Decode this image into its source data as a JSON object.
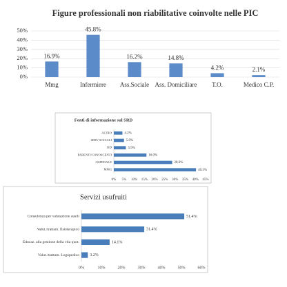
{
  "chart_data": [
    {
      "type": "bar",
      "orientation": "vertical",
      "title": "Figure professionali non riabilitative coinvolte nelle PIC",
      "categories": [
        "Mmg",
        "Infermiere",
        "Ass.Sociale",
        "Ass. Domiciliare",
        "T.O.",
        "Medico C.P."
      ],
      "values": [
        16.9,
        45.8,
        16.2,
        14.8,
        4.2,
        2.1
      ],
      "value_labels": [
        "16.9%",
        "45.8%",
        "16.2%",
        "14.8%",
        "4.2%",
        "2.1%"
      ],
      "color": "#5b8bc9",
      "ylim": [
        0,
        50
      ],
      "yticks": [
        {
          "value": 0,
          "label": "0%"
        },
        {
          "value": 10,
          "label": "10%"
        },
        {
          "value": 20,
          "label": "20%"
        },
        {
          "value": 30,
          "label": "30%"
        },
        {
          "value": 40,
          "label": "40%"
        },
        {
          "value": 50,
          "label": "50%"
        }
      ],
      "grid": true
    },
    {
      "type": "bar",
      "orientation": "horizontal",
      "title": "Fonti di informazione sul SRD",
      "categories": [
        "ALTRO",
        "SERV SOCIALI",
        "SID",
        "PARENTI/CONOSCENTI",
        "OSPEDALE",
        "MMG"
      ],
      "values": [
        4.2,
        5.0,
        5.9,
        16.0,
        28.6,
        40.3
      ],
      "value_labels": [
        "4.2%",
        "5.0%",
        "5.9%",
        "16.0%",
        "28.6%",
        "40.3%"
      ],
      "color": "#4a7ebb",
      "xlim": [
        0,
        45
      ],
      "xticks": [
        {
          "value": 0,
          "label": "0%"
        },
        {
          "value": 5,
          "label": "5%"
        },
        {
          "value": 10,
          "label": "10%"
        },
        {
          "value": 15,
          "label": "15%"
        },
        {
          "value": 20,
          "label": "20%"
        },
        {
          "value": 25,
          "label": "25%"
        },
        {
          "value": 30,
          "label": "30%"
        },
        {
          "value": 35,
          "label": "35%"
        },
        {
          "value": 40,
          "label": "40%"
        },
        {
          "value": 45,
          "label": "45%"
        }
      ],
      "grid": false
    },
    {
      "type": "bar",
      "orientation": "horizontal",
      "title": "Servizi usufruiti",
      "categories": [
        "Consulenza per valutazione ausili",
        "Valut./trattam. fisioterapico",
        "Educaz. alla gestione della vita quot.",
        "Valut./trattam. Logopedico"
      ],
      "values": [
        51.4,
        31.4,
        14.1,
        3.2
      ],
      "value_labels": [
        "51.4%",
        "31.4%",
        "14.1%",
        "3.2%"
      ],
      "color": "#4a7ebb",
      "xlim": [
        0,
        60
      ],
      "xticks": [
        {
          "value": 0,
          "label": "0%"
        },
        {
          "value": 10,
          "label": "10%"
        },
        {
          "value": 20,
          "label": "20%"
        },
        {
          "value": 30,
          "label": "30%"
        },
        {
          "value": 40,
          "label": "40%"
        },
        {
          "value": 50,
          "label": "50%"
        },
        {
          "value": 60,
          "label": "60%"
        }
      ],
      "grid": false
    }
  ]
}
